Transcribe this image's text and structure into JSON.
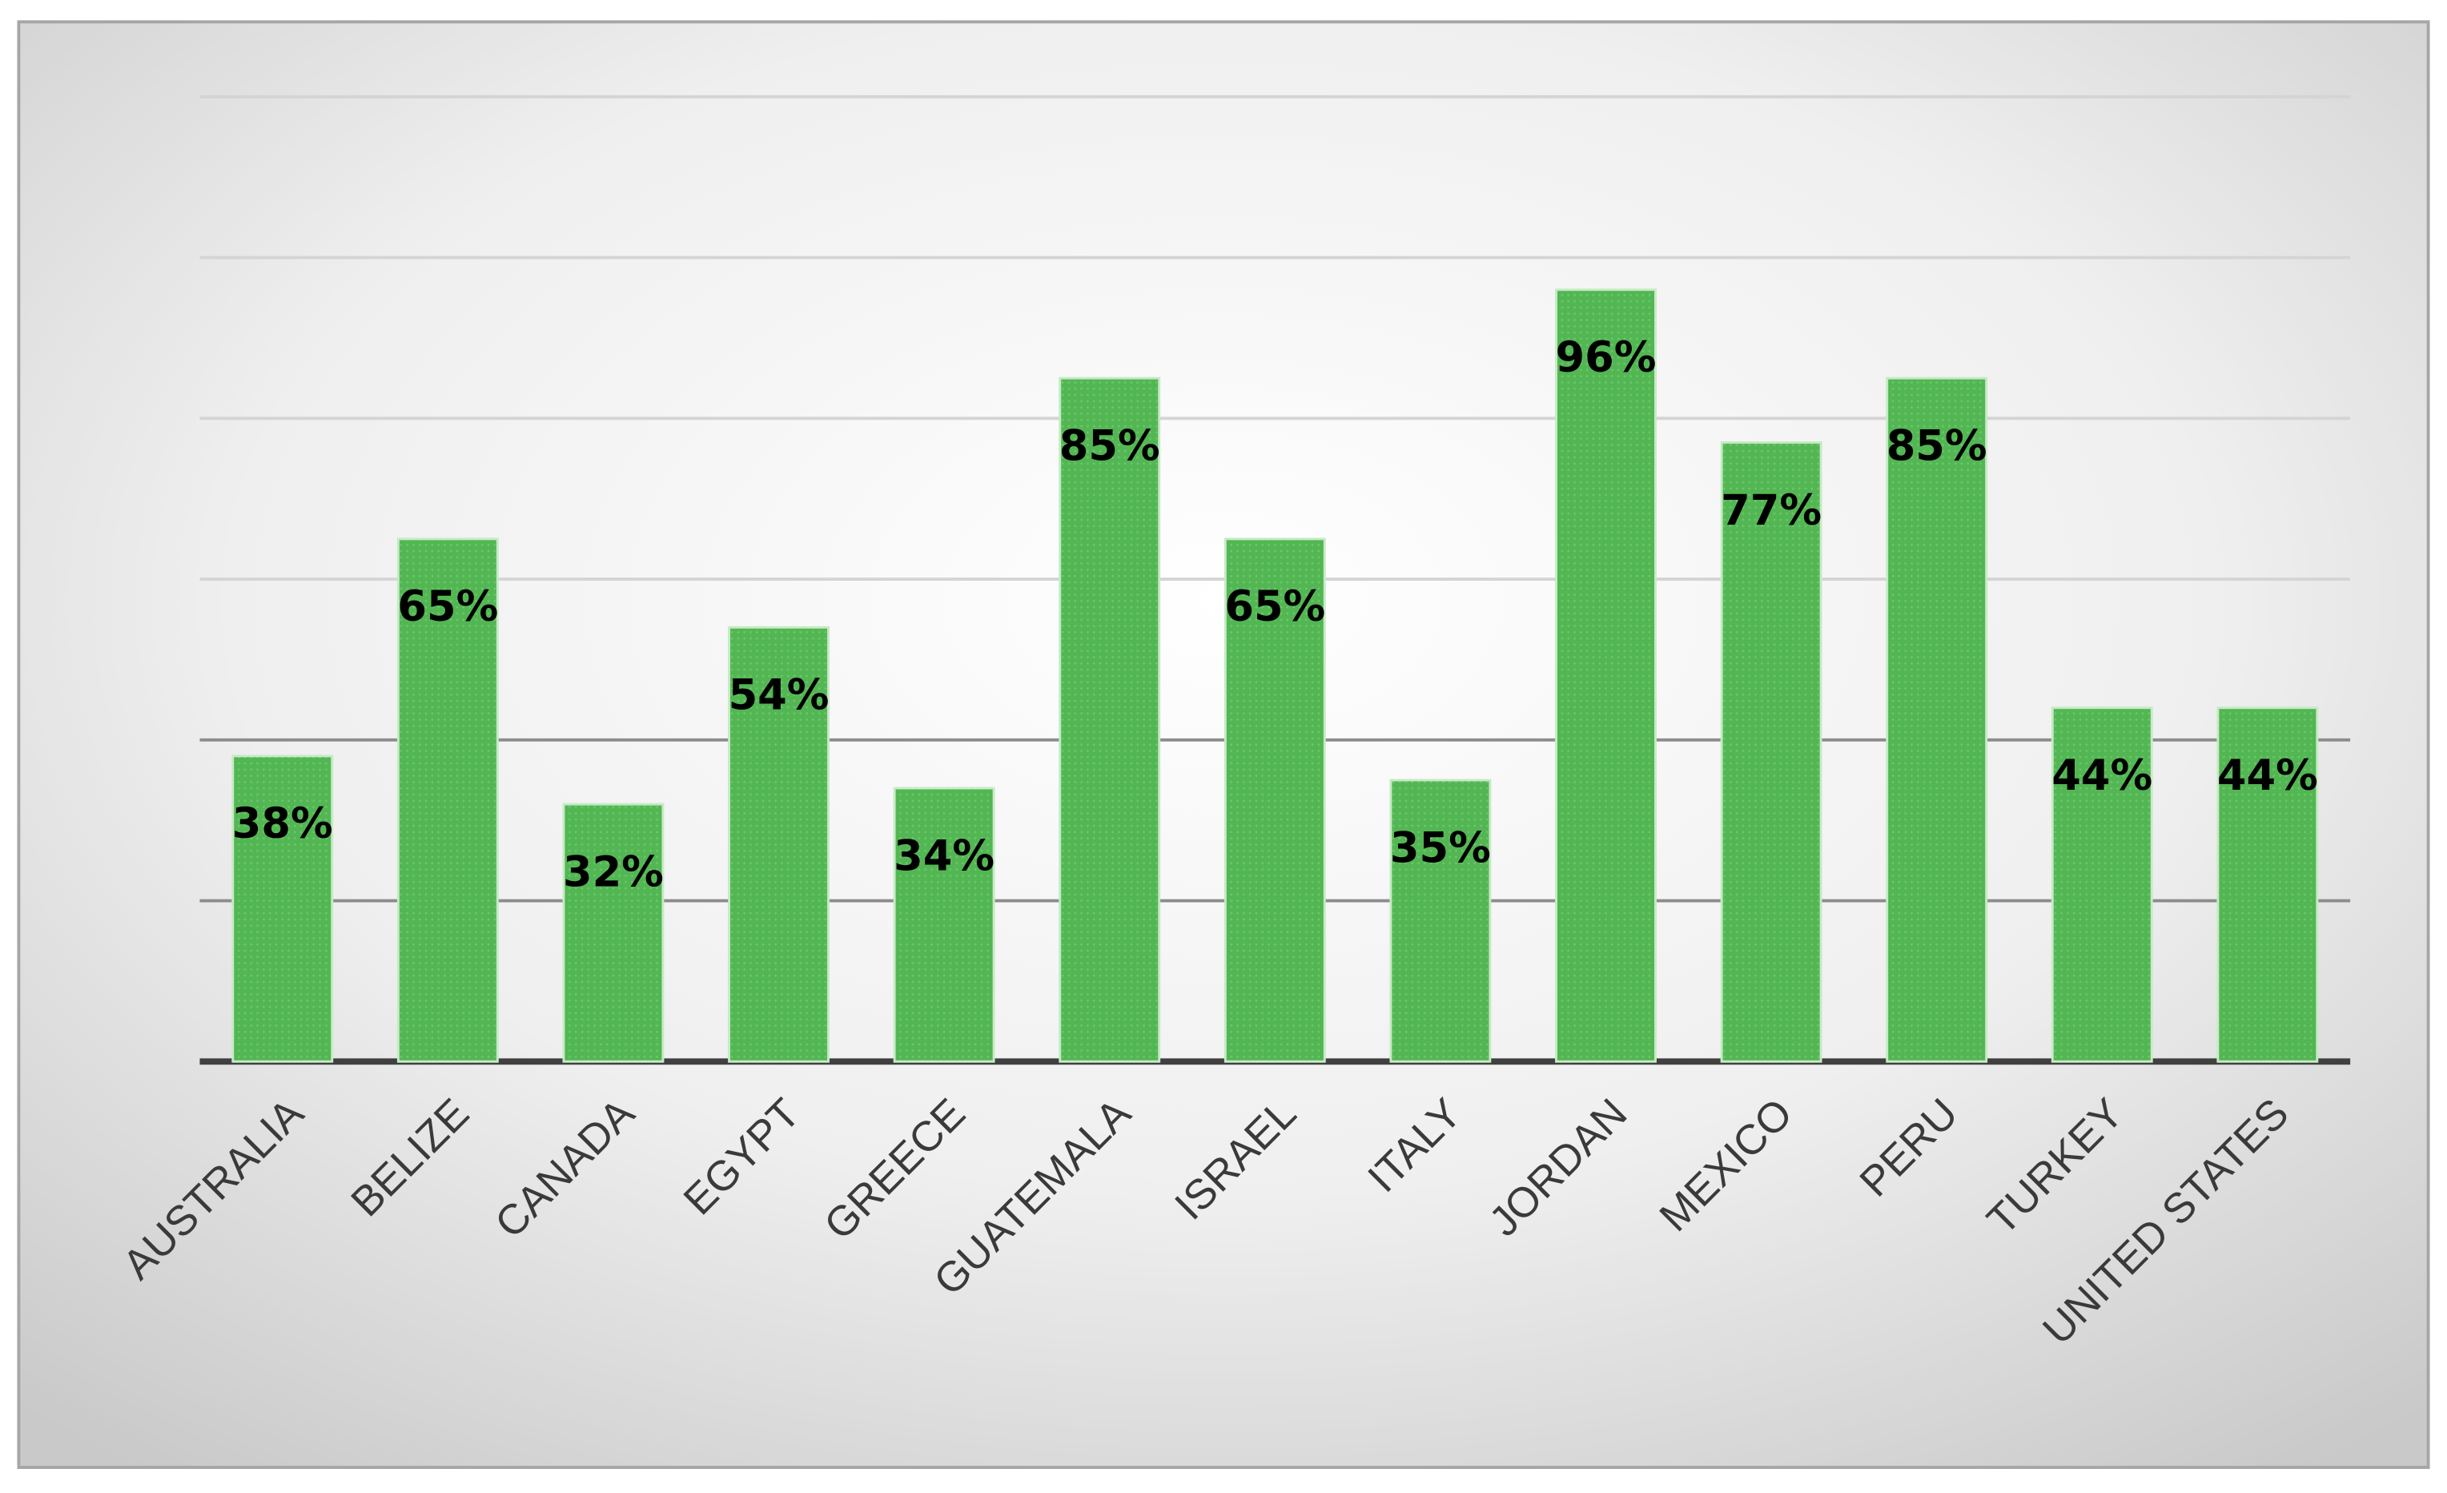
{
  "chart_data": {
    "type": "bar",
    "categories": [
      "AUSTRALIA",
      "BELIZE",
      "CANADA",
      "EGYPT",
      "GREECE",
      "GUATEMALA",
      "ISRAEL",
      "ITALY",
      "JORDAN",
      "MEXICO",
      "PERU",
      "TURKEY",
      "UNITED STATES"
    ],
    "values": [
      38,
      65,
      32,
      54,
      34,
      85,
      65,
      35,
      96,
      77,
      85,
      44,
      44
    ],
    "value_labels": [
      "38%",
      "65%",
      "32%",
      "54%",
      "34%",
      "85%",
      "65%",
      "35%",
      "96%",
      "77%",
      "85%",
      "44%",
      "44%"
    ],
    "color": "#52b752",
    "ylim": [
      0,
      120
    ],
    "yticks": [
      0,
      20,
      40,
      60,
      80,
      100,
      120
    ],
    "grid": true
  }
}
